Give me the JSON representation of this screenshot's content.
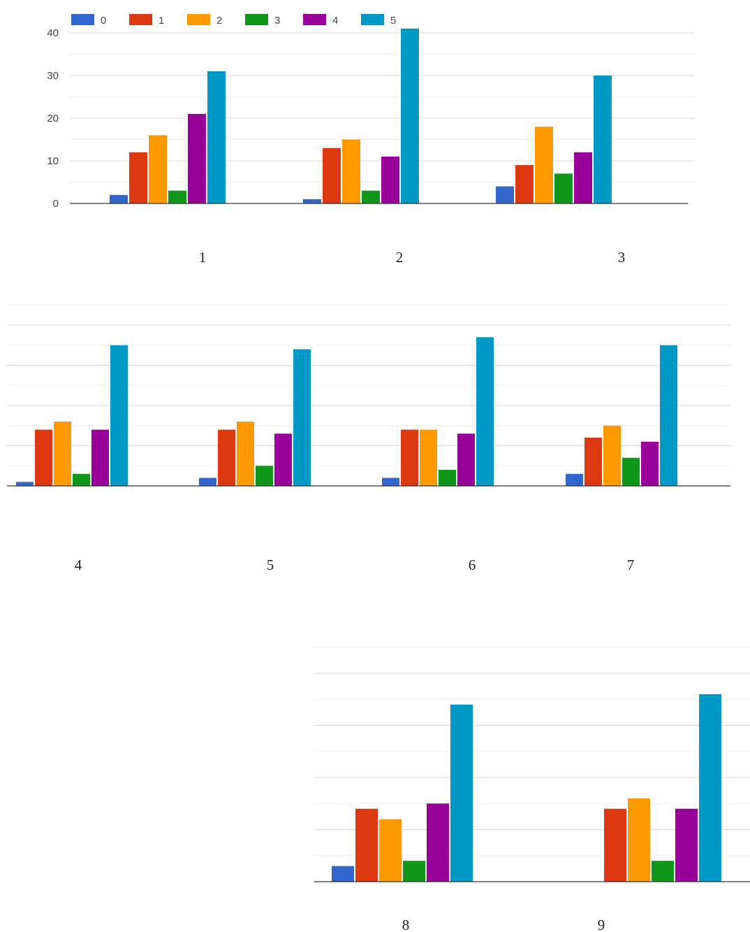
{
  "chart_data": [
    {
      "type": "bar",
      "categories": [
        "1",
        "2",
        "3"
      ],
      "ylim": [
        0,
        40
      ],
      "yticks": [
        "0",
        "10",
        "20",
        "30",
        "40"
      ],
      "grid": true,
      "legend": "top-left",
      "series": [
        {
          "name": "0",
          "color": "#3366cc",
          "values": [
            2,
            1,
            4
          ]
        },
        {
          "name": "1",
          "color": "#dc3912",
          "values": [
            12,
            13,
            9
          ]
        },
        {
          "name": "2",
          "color": "#ff9900",
          "values": [
            16,
            15,
            18
          ]
        },
        {
          "name": "3",
          "color": "#109618",
          "values": [
            3,
            3,
            7
          ]
        },
        {
          "name": "4",
          "color": "#990099",
          "values": [
            21,
            11,
            12
          ]
        },
        {
          "name": "5",
          "color": "#0099c6",
          "values": [
            31,
            41,
            30
          ]
        }
      ]
    },
    {
      "type": "bar",
      "categories": [
        "4",
        "5",
        "6",
        "7"
      ],
      "ylim": [
        0,
        40
      ],
      "grid": true,
      "series": [
        {
          "name": "0",
          "color": "#3366cc",
          "values": [
            1,
            2,
            2,
            3
          ]
        },
        {
          "name": "1",
          "color": "#dc3912",
          "values": [
            14,
            14,
            14,
            12
          ]
        },
        {
          "name": "2",
          "color": "#ff9900",
          "values": [
            16,
            16,
            14,
            15
          ]
        },
        {
          "name": "3",
          "color": "#109618",
          "values": [
            3,
            5,
            4,
            7
          ]
        },
        {
          "name": "4",
          "color": "#990099",
          "values": [
            14,
            13,
            13,
            11
          ]
        },
        {
          "name": "5",
          "color": "#0099c6",
          "values": [
            35,
            34,
            37,
            35
          ]
        }
      ]
    },
    {
      "type": "bar",
      "categories": [
        "8",
        "9"
      ],
      "ylim": [
        0,
        35
      ],
      "grid": true,
      "series": [
        {
          "name": "0",
          "color": "#3366cc",
          "values": [
            3,
            0
          ]
        },
        {
          "name": "1",
          "color": "#dc3912",
          "values": [
            14,
            14
          ]
        },
        {
          "name": "2",
          "color": "#ff9900",
          "values": [
            12,
            16
          ]
        },
        {
          "name": "3",
          "color": "#109618",
          "values": [
            4,
            4
          ]
        },
        {
          "name": "4",
          "color": "#990099",
          "values": [
            15,
            14
          ]
        },
        {
          "name": "5",
          "color": "#0099c6",
          "values": [
            34,
            36
          ]
        }
      ]
    }
  ]
}
